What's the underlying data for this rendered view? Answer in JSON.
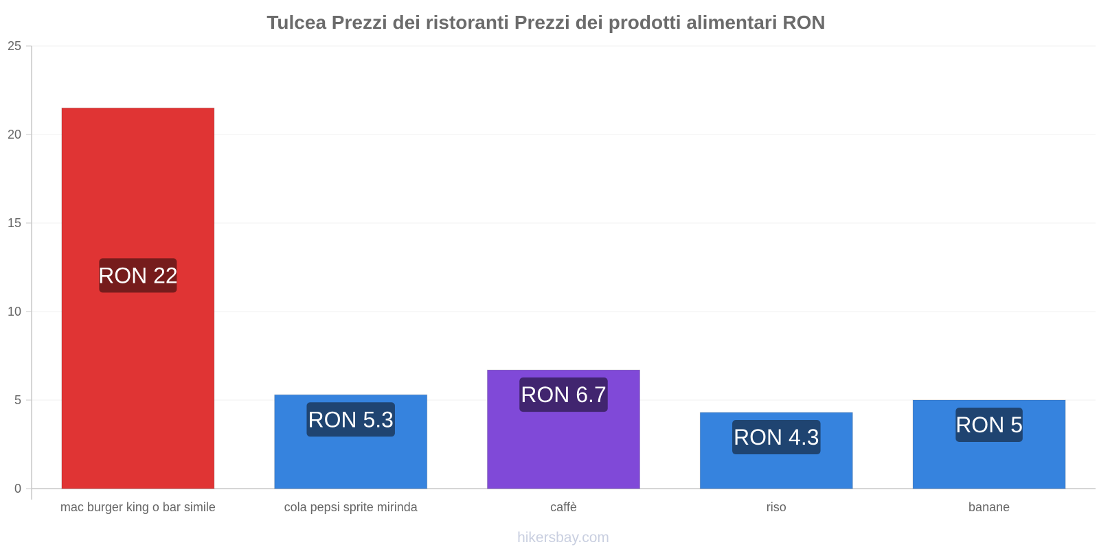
{
  "chart_data": {
    "type": "bar",
    "title": "Tulcea Prezzi dei ristoranti Prezzi dei prodotti alimentari RON",
    "xlabel": "",
    "ylabel": "",
    "ylim": [
      0,
      25
    ],
    "yticks": [
      0,
      5,
      10,
      15,
      20,
      25
    ],
    "grid": true,
    "categories": [
      "mac burger king o bar simile",
      "cola pepsi sprite mirinda",
      "caffè",
      "riso",
      "banane"
    ],
    "values": [
      21.5,
      5.3,
      6.7,
      4.3,
      5.0
    ],
    "value_labels": [
      "RON 22",
      "RON 5.3",
      "RON 6.7",
      "RON 4.3",
      "RON 5"
    ],
    "bar_colors": [
      "#e03434",
      "#3683de",
      "#8049d8",
      "#3683de",
      "#3683de"
    ],
    "label_bg_colors": [
      "#761c1c",
      "#1f4471",
      "#41256f",
      "#1f4471",
      "#1f4471"
    ]
  },
  "watermark": "hikersbay.com"
}
